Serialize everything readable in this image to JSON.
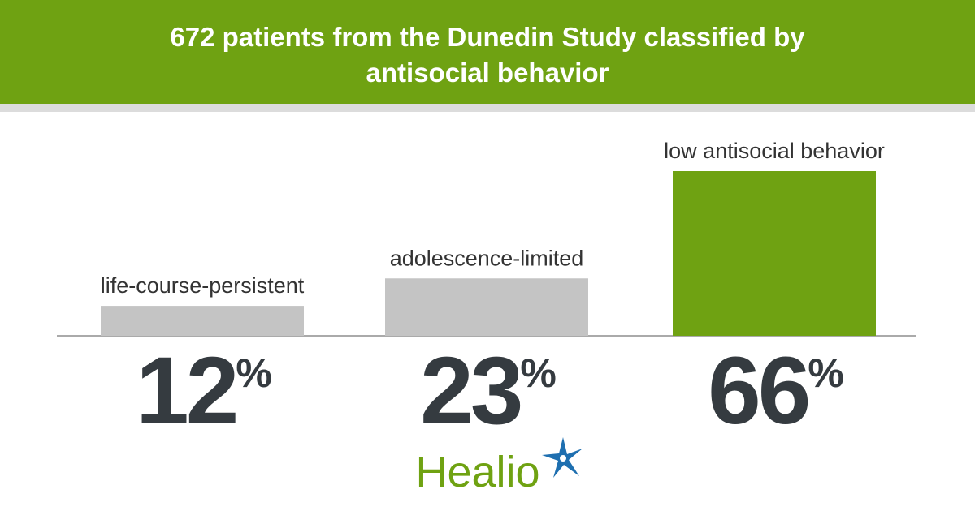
{
  "chart_data": {
    "type": "bar",
    "title": "672 patients from the Dunedin Study classified by antisocial behavior",
    "categories": [
      "life-course-persistent",
      "adolescence-limited",
      "low antisocial behavior"
    ],
    "values": [
      12,
      23,
      66
    ],
    "value_labels": [
      "12%",
      "23%",
      "66%"
    ],
    "colors": [
      "#c4c4c4",
      "#c4c4c4",
      "#6fa212"
    ]
  },
  "logo": "Healio"
}
